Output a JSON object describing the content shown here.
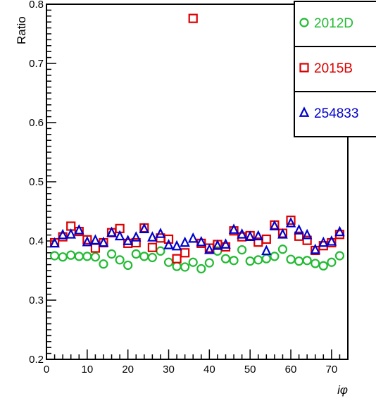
{
  "chart_data": {
    "type": "scatter",
    "xlabel": "iφ",
    "ylabel": "Ratio",
    "xlim": [
      0,
      74
    ],
    "ylim": [
      0.2,
      0.8
    ],
    "x_ticks": [
      0,
      10,
      20,
      30,
      40,
      50,
      60,
      70
    ],
    "x_tick_labels": [
      "0",
      "10",
      "20",
      "30",
      "40",
      "50",
      "60",
      "70"
    ],
    "y_ticks": [
      0.2,
      0.3,
      0.4,
      0.5,
      0.6,
      0.7,
      0.8
    ],
    "y_tick_labels": [
      "0.2",
      "0.3",
      "0.4",
      "0.5",
      "0.6",
      "0.7",
      "0.8"
    ],
    "grid": false,
    "legend_position": "top-right",
    "series": [
      {
        "name": "2012D",
        "color": "#22bb33",
        "marker": "circle",
        "x": [
          2,
          4,
          6,
          8,
          10,
          12,
          14,
          16,
          18,
          20,
          22,
          24,
          26,
          28,
          30,
          32,
          34,
          36,
          38,
          40,
          42,
          44,
          46,
          48,
          50,
          52,
          54,
          56,
          58,
          60,
          62,
          64,
          66,
          68,
          70,
          72
        ],
        "y": [
          0.375,
          0.373,
          0.376,
          0.374,
          0.374,
          0.373,
          0.361,
          0.378,
          0.368,
          0.359,
          0.378,
          0.374,
          0.372,
          0.383,
          0.364,
          0.357,
          0.356,
          0.364,
          0.353,
          0.363,
          0.383,
          0.37,
          0.367,
          0.385,
          0.366,
          0.368,
          0.37,
          0.374,
          0.386,
          0.369,
          0.366,
          0.367,
          0.362,
          0.358,
          0.364,
          0.375
        ]
      },
      {
        "name": "2015B",
        "color": "#dd0000",
        "marker": "square",
        "x": [
          2,
          4,
          6,
          8,
          10,
          12,
          14,
          16,
          18,
          20,
          22,
          24,
          26,
          28,
          30,
          32,
          34,
          36,
          38,
          40,
          42,
          44,
          46,
          48,
          50,
          52,
          54,
          56,
          58,
          60,
          62,
          64,
          66,
          68,
          70,
          72
        ],
        "y": [
          0.397,
          0.407,
          0.425,
          0.416,
          0.402,
          0.388,
          0.397,
          0.414,
          0.421,
          0.396,
          0.397,
          0.422,
          0.389,
          0.405,
          0.403,
          0.37,
          0.38,
          0.776,
          0.396,
          0.388,
          0.394,
          0.39,
          0.417,
          0.407,
          0.409,
          0.398,
          0.403,
          0.427,
          0.413,
          0.435,
          0.408,
          0.401,
          0.384,
          0.392,
          0.397,
          0.411
        ]
      },
      {
        "name": "254833",
        "color": "#0000cc",
        "marker": "triangle",
        "x": [
          2,
          4,
          6,
          8,
          10,
          12,
          14,
          16,
          18,
          20,
          22,
          24,
          26,
          28,
          30,
          32,
          34,
          36,
          38,
          40,
          42,
          44,
          46,
          48,
          50,
          52,
          54,
          56,
          58,
          60,
          62,
          64,
          66,
          68,
          70,
          72
        ],
        "y": [
          0.396,
          0.41,
          0.411,
          0.418,
          0.398,
          0.401,
          0.397,
          0.414,
          0.408,
          0.4,
          0.406,
          0.42,
          0.406,
          0.412,
          0.393,
          0.391,
          0.397,
          0.404,
          0.398,
          0.385,
          0.392,
          0.394,
          0.419,
          0.411,
          0.407,
          0.408,
          0.383,
          0.425,
          0.411,
          0.43,
          0.418,
          0.41,
          0.385,
          0.397,
          0.399,
          0.415
        ]
      }
    ]
  }
}
